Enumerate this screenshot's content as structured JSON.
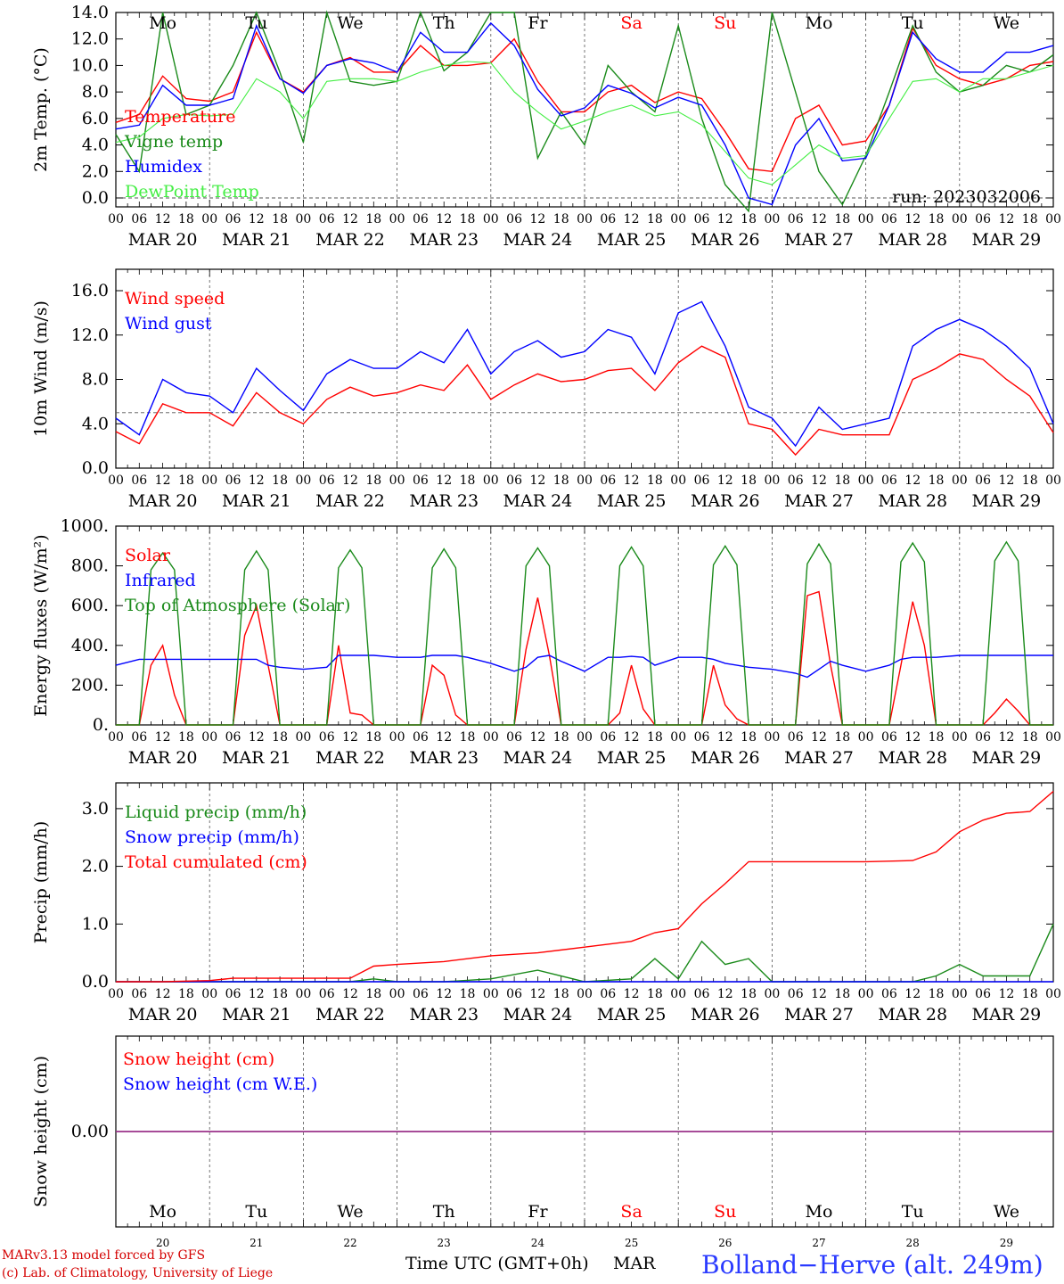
{
  "run_label": "run: 2023032006",
  "x_title": "Time UTC (GMT+0h)",
  "month_label": "MAR",
  "station": "Bolland−Herve (alt. 249m)",
  "credit_line1": "MARv3.13 model forced by GFS",
  "credit_line2": "(c) Lab. of Climatology, University of Liege",
  "days": [
    {
      "date": "MAR 20",
      "num": "20",
      "dow": "Mo",
      "weekend": false
    },
    {
      "date": "MAR 21",
      "num": "21",
      "dow": "Tu",
      "weekend": false
    },
    {
      "date": "MAR 22",
      "num": "22",
      "dow": "We",
      "weekend": false
    },
    {
      "date": "MAR 23",
      "num": "23",
      "dow": "Th",
      "weekend": false
    },
    {
      "date": "MAR 24",
      "num": "24",
      "dow": "Fr",
      "weekend": false
    },
    {
      "date": "MAR 25",
      "num": "25",
      "dow": "Sa",
      "weekend": true
    },
    {
      "date": "MAR 26",
      "num": "26",
      "dow": "Su",
      "weekend": true
    },
    {
      "date": "MAR 27",
      "num": "27",
      "dow": "Mo",
      "weekend": false
    },
    {
      "date": "MAR 28",
      "num": "28",
      "dow": "Tu",
      "weekend": false
    },
    {
      "date": "MAR 29",
      "num": "29",
      "dow": "We",
      "weekend": false
    }
  ],
  "hour_ticks": [
    "00",
    "06",
    "12",
    "18"
  ],
  "colors": {
    "red": "#ff0000",
    "green": "#1a8a1a",
    "blue": "#0000ff",
    "lime": "#44ee44",
    "purple": "#8a3aa0",
    "footer_red": "#d40000",
    "station_blue": "#2a3aff"
  },
  "chart_data": [
    {
      "type": "line",
      "ylabel": "2m Temp. (°C)",
      "ylim": [
        -0.8,
        14.0
      ],
      "yticks": [
        "0.0",
        "2.0",
        "4.0",
        "6.0",
        "8.0",
        "10.0",
        "12.0",
        "14.0"
      ],
      "ref_line": 0,
      "x": [
        0,
        6,
        12,
        18,
        24,
        30,
        36,
        42,
        48,
        54,
        60,
        66,
        72,
        78,
        84,
        90,
        96,
        102,
        108,
        114,
        120,
        126,
        132,
        138,
        144,
        150,
        156,
        162,
        168,
        174,
        180,
        186,
        192,
        198,
        204,
        210,
        216,
        222,
        228,
        234,
        240
      ],
      "series": [
        {
          "name": "Temperature",
          "color": "red",
          "values": [
            5.7,
            6.3,
            9.2,
            7.5,
            7.3,
            8.0,
            12.5,
            9.0,
            8.0,
            10.0,
            10.6,
            9.5,
            9.5,
            11.5,
            10.0,
            10.0,
            10.2,
            12.0,
            8.8,
            6.5,
            6.5,
            8.0,
            8.5,
            7.2,
            8.0,
            7.5,
            5.0,
            2.2,
            2.0,
            6.0,
            7.0,
            4.0,
            4.3,
            7.0,
            12.8,
            10.0,
            9.0,
            8.5,
            9.0,
            10.0,
            10.3
          ]
        },
        {
          "name": "Vigne temp",
          "color": "green",
          "values": [
            4.8,
            2.0,
            14.0,
            6.3,
            7.0,
            10.0,
            14.0,
            9.5,
            4.2,
            14.0,
            8.8,
            8.5,
            8.8,
            14.0,
            9.6,
            11.0,
            14.0,
            14.0,
            3.0,
            6.5,
            4.0,
            10.0,
            8.0,
            6.5,
            13.0,
            6.0,
            1.0,
            -1.0,
            14.0,
            8.0,
            2.0,
            -0.5,
            3.2,
            8.0,
            13.0,
            9.5,
            8.0,
            8.5,
            10.0,
            9.5,
            10.8
          ]
        },
        {
          "name": "Humidex",
          "color": "blue",
          "values": [
            5.2,
            5.5,
            8.5,
            7.0,
            7.0,
            7.5,
            13.0,
            9.0,
            7.9,
            10.0,
            10.5,
            10.2,
            9.5,
            12.5,
            11.0,
            11.0,
            13.2,
            11.5,
            8.2,
            6.2,
            6.8,
            8.5,
            7.9,
            6.8,
            7.6,
            7.0,
            4.0,
            0.0,
            -0.5,
            4.0,
            6.0,
            2.8,
            3.0,
            7.0,
            12.5,
            10.5,
            9.5,
            9.5,
            11.0,
            11.0,
            11.5
          ]
        },
        {
          "name": "DewPoint Temp",
          "color": "lime",
          "values": [
            4.2,
            4.6,
            6.0,
            6.3,
            6.2,
            6.3,
            9.0,
            8.0,
            6.0,
            8.8,
            9.0,
            9.0,
            8.8,
            9.5,
            10.0,
            10.3,
            10.2,
            8.0,
            6.5,
            5.2,
            5.8,
            6.5,
            7.0,
            6.2,
            6.5,
            5.5,
            3.5,
            1.5,
            1.0,
            2.5,
            4.0,
            3.0,
            3.2,
            6.0,
            8.8,
            9.0,
            8.0,
            9.0,
            9.0,
            9.5,
            10.0
          ]
        }
      ]
    },
    {
      "type": "line",
      "ylabel": "10m Wind (m/s)",
      "ylim": [
        0.0,
        16.0
      ],
      "yticks": [
        "0.0",
        "4.0",
        "8.0",
        "12.0",
        "16.0"
      ],
      "ref_line": 5,
      "x": [
        0,
        6,
        12,
        18,
        24,
        30,
        36,
        42,
        48,
        54,
        60,
        66,
        72,
        78,
        84,
        90,
        96,
        102,
        108,
        114,
        120,
        126,
        132,
        138,
        144,
        150,
        156,
        162,
        168,
        174,
        180,
        186,
        192,
        198,
        204,
        210,
        216,
        222,
        228,
        234,
        240
      ],
      "series": [
        {
          "name": "Wind speed",
          "color": "red",
          "values": [
            3.3,
            2.2,
            5.8,
            5.0,
            5.0,
            3.8,
            6.8,
            5.0,
            4.0,
            6.2,
            7.3,
            6.5,
            6.8,
            7.5,
            7.0,
            9.3,
            6.2,
            7.5,
            8.5,
            7.8,
            8.0,
            8.8,
            9.0,
            7.0,
            9.5,
            11.0,
            10.0,
            4.0,
            3.5,
            1.2,
            3.5,
            3.0,
            3.0,
            3.0,
            8.0,
            9.0,
            10.3,
            9.8,
            8.0,
            6.5,
            3.2
          ]
        },
        {
          "name": "Wind gust",
          "color": "blue",
          "values": [
            4.5,
            3.0,
            8.0,
            6.8,
            6.5,
            5.0,
            9.0,
            7.0,
            5.2,
            8.5,
            9.8,
            9.0,
            9.0,
            10.5,
            9.5,
            12.5,
            8.5,
            10.5,
            11.5,
            10.0,
            10.5,
            12.5,
            11.8,
            8.5,
            14.0,
            15.0,
            11.0,
            5.5,
            4.5,
            2.0,
            5.5,
            3.5,
            4.0,
            4.5,
            11.0,
            12.5,
            13.4,
            12.5,
            11.0,
            9.0,
            4.0
          ]
        }
      ]
    },
    {
      "type": "line",
      "ylabel": "Energy fluxes (W/m²)",
      "ylim": [
        0,
        1000
      ],
      "yticks": [
        "0.",
        "200.",
        "400.",
        "600.",
        "800.",
        "1000."
      ],
      "ref_line": null,
      "x": [
        0,
        6,
        9,
        12,
        15,
        18,
        24,
        30,
        33,
        36,
        39,
        42,
        48,
        54,
        57,
        60,
        63,
        66,
        72,
        78,
        81,
        84,
        87,
        90,
        96,
        102,
        105,
        108,
        111,
        114,
        120,
        126,
        129,
        132,
        135,
        138,
        144,
        150,
        153,
        156,
        159,
        162,
        168,
        174,
        177,
        180,
        183,
        186,
        192,
        198,
        201,
        204,
        207,
        210,
        216,
        222,
        225,
        228,
        231,
        234,
        240
      ],
      "series": [
        {
          "name": "Solar",
          "color": "red",
          "values": [
            0,
            0,
            300,
            400,
            150,
            0,
            0,
            0,
            450,
            600,
            300,
            0,
            0,
            0,
            400,
            60,
            50,
            0,
            0,
            0,
            300,
            250,
            50,
            0,
            0,
            0,
            380,
            640,
            350,
            0,
            0,
            0,
            60,
            300,
            80,
            0,
            0,
            0,
            300,
            100,
            30,
            0,
            0,
            0,
            650,
            670,
            300,
            0,
            0,
            0,
            300,
            620,
            400,
            0,
            0,
            0,
            60,
            130,
            70,
            0,
            0
          ]
        },
        {
          "name": "Infrared",
          "color": "blue",
          "values": [
            300,
            330,
            330,
            330,
            330,
            330,
            330,
            330,
            330,
            330,
            300,
            290,
            280,
            290,
            350,
            350,
            350,
            350,
            340,
            340,
            350,
            350,
            350,
            340,
            310,
            270,
            290,
            340,
            350,
            320,
            270,
            340,
            340,
            345,
            340,
            300,
            340,
            340,
            330,
            310,
            300,
            290,
            280,
            260,
            240,
            280,
            320,
            300,
            270,
            300,
            330,
            340,
            340,
            340,
            350,
            350,
            350,
            350,
            350,
            350,
            350
          ]
        },
        {
          "name": "Top of Atmosphere (Solar)",
          "color": "green",
          "values": [
            0,
            0,
            780,
            865,
            780,
            0,
            0,
            0,
            780,
            875,
            780,
            0,
            0,
            0,
            790,
            880,
            790,
            0,
            0,
            0,
            790,
            885,
            790,
            0,
            0,
            0,
            800,
            890,
            800,
            0,
            0,
            0,
            800,
            895,
            800,
            0,
            0,
            0,
            805,
            900,
            805,
            0,
            0,
            0,
            810,
            910,
            810,
            0,
            0,
            0,
            820,
            915,
            820,
            0,
            0,
            0,
            825,
            920,
            825,
            0,
            0
          ]
        }
      ]
    },
    {
      "type": "line",
      "ylabel": "Precip (mm/h)",
      "ylim": [
        0.0,
        3.4
      ],
      "yticks": [
        "0.0",
        "1.0",
        "2.0",
        "3.0"
      ],
      "ref_line": null,
      "x": [
        0,
        12,
        24,
        30,
        36,
        48,
        60,
        66,
        72,
        84,
        96,
        108,
        120,
        132,
        138,
        144,
        150,
        156,
        162,
        168,
        180,
        192,
        204,
        210,
        216,
        222,
        228,
        234,
        240
      ],
      "series": [
        {
          "name": "Liquid precip (mm/h)",
          "color": "green",
          "values": [
            0,
            0,
            0,
            0,
            0,
            0,
            0,
            0.05,
            0,
            0,
            0.05,
            0.2,
            0,
            0.05,
            0.4,
            0.05,
            0.7,
            0.3,
            0.4,
            0,
            0,
            0,
            0,
            0.1,
            0.3,
            0.1,
            0.1,
            0.1,
            1.0
          ]
        },
        {
          "name": "Snow precip (mm/h)",
          "color": "blue",
          "values": [
            0,
            0,
            0,
            0,
            0,
            0,
            0,
            0,
            0,
            0,
            0,
            0,
            0,
            0,
            0,
            0,
            0,
            0,
            0,
            0,
            0,
            0,
            0,
            0,
            0,
            0,
            0,
            0,
            0
          ]
        },
        {
          "name": "Total cumulated (cm)",
          "color": "red",
          "values": [
            0,
            0,
            0.02,
            0.06,
            0.06,
            0.06,
            0.06,
            0.27,
            0.3,
            0.35,
            0.45,
            0.5,
            0.6,
            0.7,
            0.85,
            0.92,
            1.35,
            1.7,
            2.08,
            2.08,
            2.08,
            2.08,
            2.1,
            2.25,
            2.6,
            2.8,
            2.92,
            2.95,
            3.3
          ]
        }
      ]
    },
    {
      "type": "line",
      "ylabel": "Snow height (cm)",
      "ylim": [
        -1,
        1
      ],
      "yticks": [
        "0.00"
      ],
      "ref_line": null,
      "x": [
        0,
        240
      ],
      "series": [
        {
          "name": "Snow height (cm)",
          "color": "red",
          "values": [
            0,
            0
          ]
        },
        {
          "name": "Snow height (cm W.E.)",
          "color": "purple",
          "values": [
            0,
            0
          ]
        }
      ]
    }
  ]
}
